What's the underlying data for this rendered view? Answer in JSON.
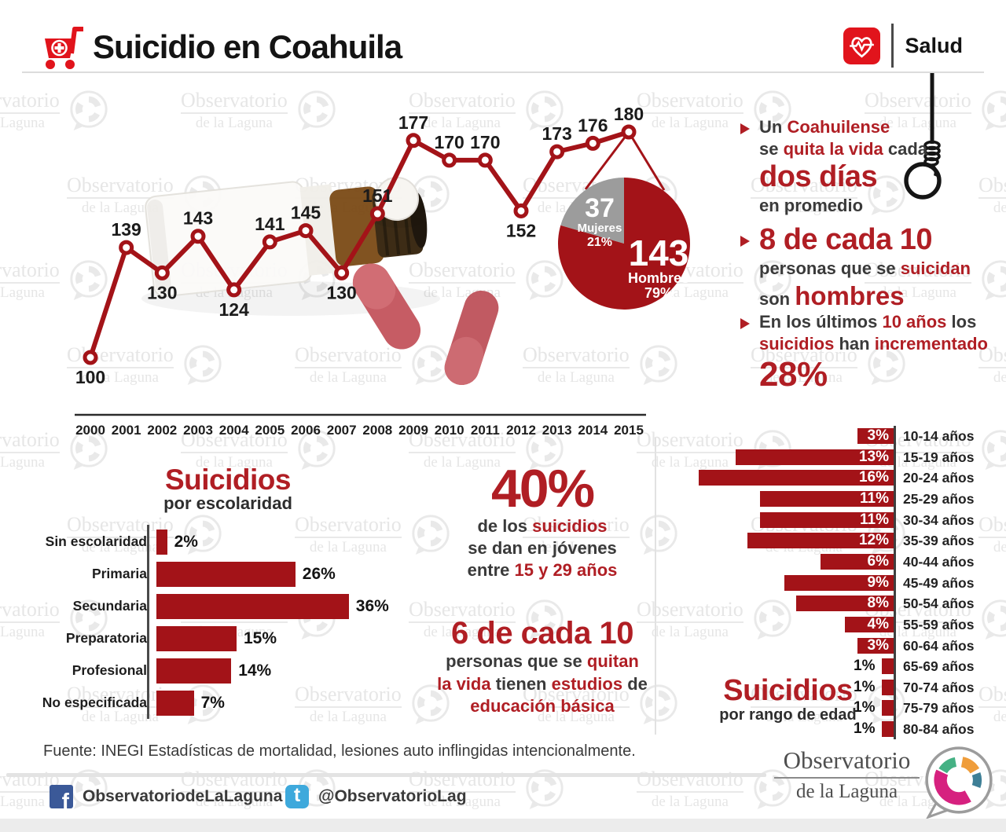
{
  "header": {
    "title": "Suicidio en Coahuila",
    "brand_label": "Salud"
  },
  "colors": {
    "brand_red": "#e1141c",
    "chart_red": "#a31318",
    "text_red": "#b01e24",
    "text_dark": "#3a3a3a",
    "pie_gray": "#9c9c9c"
  },
  "icons": {
    "facebook_glyph": "f",
    "twitter_glyph": "t"
  },
  "watermark": {
    "line1": "Observatorio",
    "line2": "de la Laguna"
  },
  "chart_data": [
    {
      "id": "annual_line",
      "type": "line",
      "title": "",
      "categories": [
        "2000",
        "2001",
        "2002",
        "2003",
        "2004",
        "2005",
        "2006",
        "2007",
        "2008",
        "2009",
        "2010",
        "2011",
        "2012",
        "2013",
        "2014",
        "2015"
      ],
      "values": [
        100,
        139,
        130,
        143,
        124,
        141,
        145,
        130,
        151,
        177,
        170,
        170,
        152,
        173,
        176,
        180
      ],
      "label_below_indices": [
        0,
        2,
        4,
        7,
        12
      ],
      "ylim": [
        100,
        180
      ],
      "grid": false,
      "color": "#a31318"
    },
    {
      "id": "gender_pie",
      "type": "pie",
      "slices": [
        {
          "label": "Hombres",
          "value": 143,
          "pct": "79%",
          "color": "#a31318",
          "text_color": "#ffffff"
        },
        {
          "label": "Mujeres",
          "value": 37,
          "pct": "21%",
          "color": "#9c9c9c",
          "text_color": "#ffffff"
        }
      ]
    },
    {
      "id": "escolaridad_bar",
      "type": "bar",
      "title": "Suicidios",
      "subtitle": "por escolaridad",
      "categories": [
        "Sin escolaridad",
        "Primaria",
        "Secundaria",
        "Preparatoria",
        "Profesional",
        "No especificada"
      ],
      "values": [
        2,
        26,
        36,
        15,
        14,
        7
      ],
      "unit": "%",
      "color": "#a31318"
    },
    {
      "id": "edad_bar",
      "type": "bar",
      "title": "Suicidios",
      "subtitle": "por rango de edad",
      "categories": [
        "10-14 años",
        "15-19 años",
        "20-24 años",
        "25-29 años",
        "30-34 años",
        "35-39 años",
        "40-44 años",
        "45-49 años",
        "50-54 años",
        "55-59 años",
        "60-64 años",
        "65-69 años",
        "70-74 años",
        "75-79 años",
        "80-84 años"
      ],
      "values": [
        3,
        13,
        16,
        11,
        11,
        12,
        6,
        9,
        8,
        4,
        3,
        1,
        1,
        1,
        1
      ],
      "unit": "%",
      "color": "#a31318"
    }
  ],
  "facts": {
    "items": [
      {
        "lines": [
          {
            "seg": [
              {
                "t": "Un ",
                "c": "dk"
              },
              {
                "t": "Coahuilense",
                "c": "rd"
              }
            ]
          },
          {
            "seg": [
              {
                "t": "se ",
                "c": "dk"
              },
              {
                "t": "quita la vida ",
                "c": "rd"
              },
              {
                "t": "cada",
                "c": "dk"
              }
            ]
          },
          {
            "cls": "xl",
            "seg": [
              {
                "t": "dos días",
                "c": "rd"
              }
            ]
          },
          {
            "seg": [
              {
                "t": "en promedio",
                "c": "dk"
              }
            ]
          }
        ]
      },
      {
        "lines": [
          {
            "cls": "xl",
            "seg": [
              {
                "t": "8 de cada 10",
                "c": "rd"
              }
            ]
          },
          {
            "seg": [
              {
                "t": "personas que se ",
                "c": "dk"
              },
              {
                "t": "suicidan",
                "c": "rd"
              }
            ]
          },
          {
            "seg": [
              {
                "t": "son ",
                "c": "dk"
              },
              {
                "t": "hombres",
                "c": "rd",
                "cls": "big"
              }
            ]
          }
        ]
      },
      {
        "lines": [
          {
            "seg": [
              {
                "t": "En los últimos ",
                "c": "dk"
              },
              {
                "t": "10 años ",
                "c": "rd"
              },
              {
                "t": "los",
                "c": "dk"
              }
            ]
          },
          {
            "seg": [
              {
                "t": "suicidios ",
                "c": "rd"
              },
              {
                "t": "han ",
                "c": "dk"
              },
              {
                "t": "incrementado",
                "c": "rd"
              }
            ]
          },
          {
            "cls": "xxl",
            "seg": [
              {
                "t": "28%",
                "c": "rd"
              }
            ]
          }
        ]
      }
    ]
  },
  "stats": {
    "lines": [
      {
        "cls": "mega",
        "seg": [
          {
            "t": "40%",
            "c": "rd"
          }
        ]
      },
      {
        "seg": [
          {
            "t": "de los ",
            "c": "dk"
          },
          {
            "t": "suicidios",
            "c": "rd"
          }
        ]
      },
      {
        "seg": [
          {
            "t": "se dan en jóvenes",
            "c": "dk"
          }
        ]
      },
      {
        "seg": [
          {
            "t": "entre ",
            "c": "dk"
          },
          {
            "t": "15 y 29 años",
            "c": "rd"
          }
        ]
      }
    ],
    "lines2": [
      {
        "cls": "b40",
        "seg": [
          {
            "t": "6 de cada 10",
            "c": "rd"
          }
        ]
      },
      {
        "seg": [
          {
            "t": "personas que se ",
            "c": "dk"
          },
          {
            "t": "quitan",
            "c": "rd"
          }
        ]
      },
      {
        "seg": [
          {
            "t": "la vida ",
            "c": "rd"
          },
          {
            "t": "tienen ",
            "c": "dk"
          },
          {
            "t": "estudios ",
            "c": "rd"
          },
          {
            "t": "de",
            "c": "dk"
          }
        ]
      },
      {
        "seg": [
          {
            "t": "educación básica",
            "c": "rd"
          }
        ]
      }
    ]
  },
  "footer": {
    "fuente": "Fuente: INEGI Estadísticas de mortalidad, lesiones auto inflingidas intencionalmente.",
    "facebook_label": "ObservatoriodeLaLaguna",
    "twitter_label": "@ObservatorioLag"
  },
  "logo": {
    "line1": "Observatorio",
    "line2": "de la Laguna"
  }
}
